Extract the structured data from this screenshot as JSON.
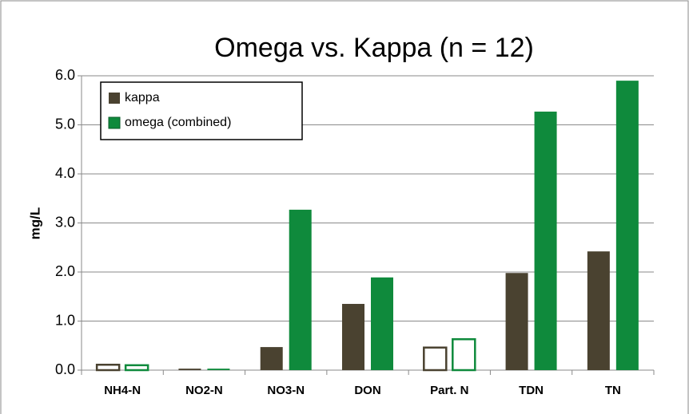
{
  "chart_data": {
    "type": "bar",
    "title": "Omega vs. Kappa (n = 12)",
    "y_label": "mg/L",
    "categories": [
      "NH4-N",
      "NO2-N",
      "NO3-N",
      "DON",
      "Part. N",
      "TDN",
      "TN"
    ],
    "series": [
      {
        "name": "kappa",
        "color": "#4a4230",
        "values": [
          0.11,
          0.03,
          0.47,
          1.35,
          0.46,
          1.98,
          2.42
        ]
      },
      {
        "name": "omega (combined)",
        "color": "#0f8a3c",
        "values": [
          0.1,
          0.03,
          3.27,
          1.89,
          0.63,
          5.27,
          5.9
        ]
      }
    ],
    "outlined_bars": [
      0,
      4
    ],
    "ylim": [
      0,
      6
    ],
    "yticks": [
      {
        "value": 0,
        "label": "0.0"
      },
      {
        "value": 1,
        "label": "1.0"
      },
      {
        "value": 2,
        "label": "2.0"
      },
      {
        "value": 3,
        "label": "3.0"
      },
      {
        "value": 4,
        "label": "4.0"
      },
      {
        "value": 5,
        "label": "5.0"
      },
      {
        "value": 6,
        "label": "6.0"
      }
    ],
    "grid": true,
    "legend": "top-left"
  }
}
